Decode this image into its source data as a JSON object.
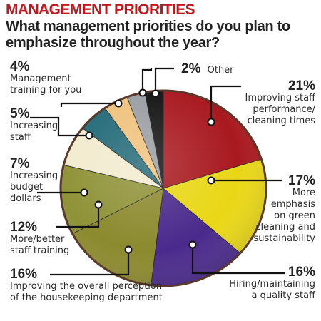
{
  "title": "MANAGEMENT PRIORITIES",
  "question": "What management priorities do you plan to emphasize throughout the year?",
  "labels": [
    {
      "pct": "21%",
      "lines": [
        "Improving staff",
        "performance/",
        "cleaning times"
      ]
    },
    {
      "pct": "17%",
      "lines": [
        "More",
        "emphasis",
        "on green",
        "cleaning and",
        "sustainability"
      ]
    },
    {
      "pct": "16%",
      "lines": [
        "Hiring/maintaining",
        "a quality staff"
      ]
    },
    {
      "pct": "16%",
      "lines": [
        "Improving the overall perception",
        "of the housekeeping department"
      ]
    },
    {
      "pct": "12%",
      "lines": [
        "More/better",
        "staff training"
      ]
    },
    {
      "pct": "7%",
      "lines": [
        "Increasing",
        "budget",
        "dollars"
      ]
    },
    {
      "pct": "5%",
      "lines": [
        "Increasing",
        "staff"
      ]
    },
    {
      "pct": "4%",
      "lines": [
        "Management",
        "training for you"
      ]
    },
    {
      "pct": "2%",
      "lines": [
        "Other"
      ]
    }
  ],
  "chart_data": {
    "type": "pie",
    "title": "MANAGEMENT PRIORITIES",
    "subtitle": "What management priorities do you plan to emphasize throughout the year?",
    "unit": "%",
    "start": "12 o'clock",
    "direction": "clockwise",
    "slices": [
      {
        "label": "Improving staff performance/cleaning times",
        "value": 21,
        "color": "#a8191f"
      },
      {
        "label": "More emphasis on green cleaning and sustainability",
        "value": 17,
        "color": "#e9d716"
      },
      {
        "label": "Hiring/maintaining a quality staff",
        "value": 16,
        "color": "#4a2a8c"
      },
      {
        "label": "Improving the overall perception of the housekeeping department",
        "value": 16,
        "color": "#8c8a2e"
      },
      {
        "label": "More/better staff training",
        "value": 12,
        "color": "#8f9237"
      },
      {
        "label": "Increasing budget dollars",
        "value": 7,
        "color": "#f2ebcf"
      },
      {
        "label": "Increasing staff",
        "value": 5,
        "color": "#236a78"
      },
      {
        "label": "Management training for you",
        "value": 4,
        "color": "#efc27d"
      },
      {
        "label": "Other",
        "value": 2,
        "color": "#141414"
      }
    ],
    "extra_slice_colors": {
      "unlabeled_gray": "#9b9ea2"
    }
  }
}
